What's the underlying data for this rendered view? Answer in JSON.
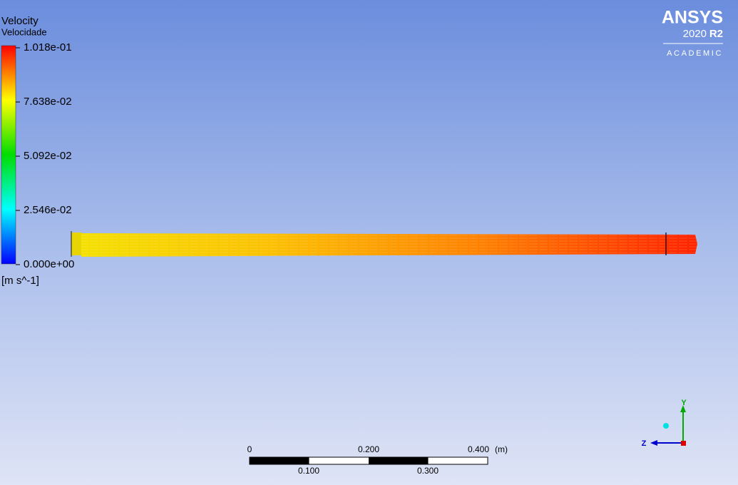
{
  "legend": {
    "title": "Velocity",
    "subtitle": "Velocidade",
    "ticks": [
      "1.018e-01",
      "7.638e-02",
      "5.092e-02",
      "2.546e-02",
      "0.000e+00"
    ],
    "unit": "[m s^-1]"
  },
  "logo": {
    "brand": "ANSYS",
    "year": "2020",
    "release": "R2",
    "edition": "ACADEMIC"
  },
  "scale_bar": {
    "top_labels": [
      "0",
      "0.200",
      "0.400"
    ],
    "unit": "(m)",
    "bottom_labels": [
      "0.100",
      "0.300"
    ]
  },
  "triad": {
    "y_label": "Y",
    "z_label": "Z"
  }
}
